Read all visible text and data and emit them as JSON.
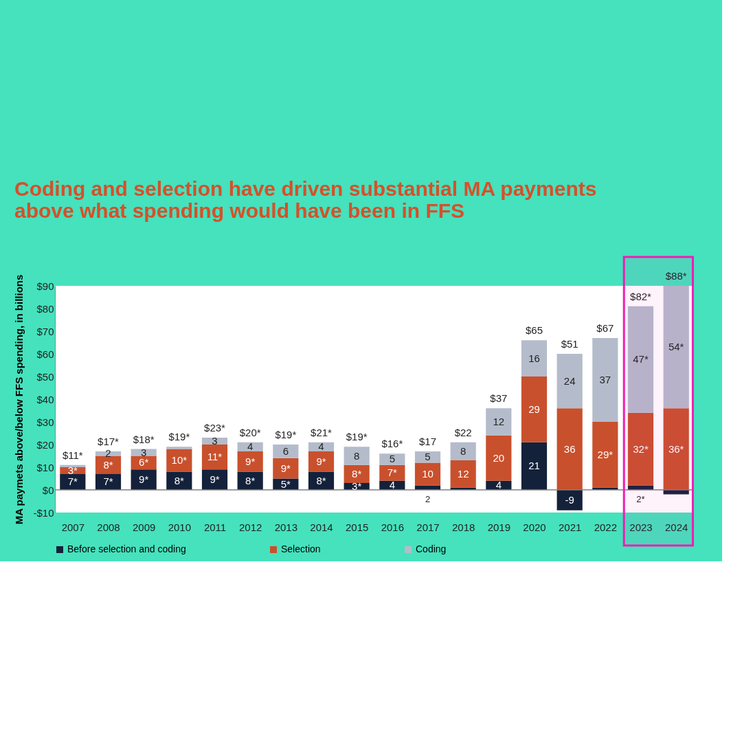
{
  "chart_data": {
    "type": "bar",
    "stacked": true,
    "title": "Coding and selection have driven substantial MA payments above what spending would have been in FFS",
    "ylabel": "MA paymets above/below  FFS spending, in billions",
    "categories": [
      "2007",
      "2008",
      "2009",
      "2010",
      "2011",
      "2012",
      "2013",
      "2014",
      "2015",
      "2016",
      "2017",
      "2018",
      "2019",
      "2020",
      "2021",
      "2022",
      "2023",
      "2024"
    ],
    "series": [
      {
        "name": "Before selection and coding",
        "color": "#14213a",
        "values": [
          7,
          7,
          9,
          8,
          9,
          8,
          5,
          8,
          3,
          4,
          2,
          1,
          4,
          21,
          -9,
          1,
          2,
          -2
        ],
        "value_labels": [
          "7*",
          "7*",
          "9*",
          "8*",
          "9*",
          "8*",
          "5*",
          "8*",
          "3*",
          "4",
          "2",
          null,
          "4",
          "21",
          "-9",
          null,
          "2*",
          null
        ]
      },
      {
        "name": "Selection",
        "color": "#c9502c",
        "values": [
          3,
          8,
          6,
          10,
          11,
          9,
          9,
          9,
          8,
          7,
          10,
          12,
          20,
          29,
          36,
          29,
          32,
          36
        ],
        "value_labels": [
          "3*",
          "8*",
          "6*",
          "10*",
          "11*",
          "9*",
          "9*",
          "9*",
          "8*",
          "7*",
          "10",
          "12",
          "20",
          "29",
          "36",
          "29*",
          "32*",
          "36*"
        ]
      },
      {
        "name": "Coding",
        "color": "#b4bccb",
        "values": [
          1,
          2,
          3,
          1,
          3,
          4,
          6,
          4,
          8,
          5,
          5,
          8,
          12,
          16,
          24,
          37,
          47,
          54
        ],
        "value_labels": [
          null,
          "2",
          "3",
          null,
          "3",
          "4",
          "6",
          "4",
          "8",
          "5",
          "5",
          "8",
          "12",
          "16",
          "24",
          "37",
          "47*",
          "54*"
        ]
      }
    ],
    "totals": [
      "$11*",
      "$17*",
      "$18*",
      "$19*",
      "$23*",
      "$20*",
      "$19*",
      "$21*",
      "$19*",
      "$16*",
      "$17",
      "$22",
      "$37",
      "$65",
      "$51",
      "$67",
      "$82*",
      "$88*"
    ],
    "ylim": [
      -10,
      90
    ],
    "yticks": [
      {
        "value": -10,
        "label": "-$10"
      },
      {
        "value": 0,
        "label": "$0"
      },
      {
        "value": 10,
        "label": "$10"
      },
      {
        "value": 20,
        "label": "$20"
      },
      {
        "value": 30,
        "label": "$30"
      },
      {
        "value": 40,
        "label": "$40"
      },
      {
        "value": 50,
        "label": "$50"
      },
      {
        "value": 60,
        "label": "$60"
      },
      {
        "value": 70,
        "label": "$70"
      },
      {
        "value": 80,
        "label": "$80"
      },
      {
        "value": 90,
        "label": "$90"
      }
    ],
    "ref_lines": [
      {
        "axis": "y",
        "value": 0,
        "color": "#808080"
      }
    ],
    "bands": [
      {
        "axis": "x",
        "from": "2023",
        "to": "2024",
        "color": "#ee1eb4"
      }
    ],
    "grid": false,
    "legend": "bottom"
  }
}
